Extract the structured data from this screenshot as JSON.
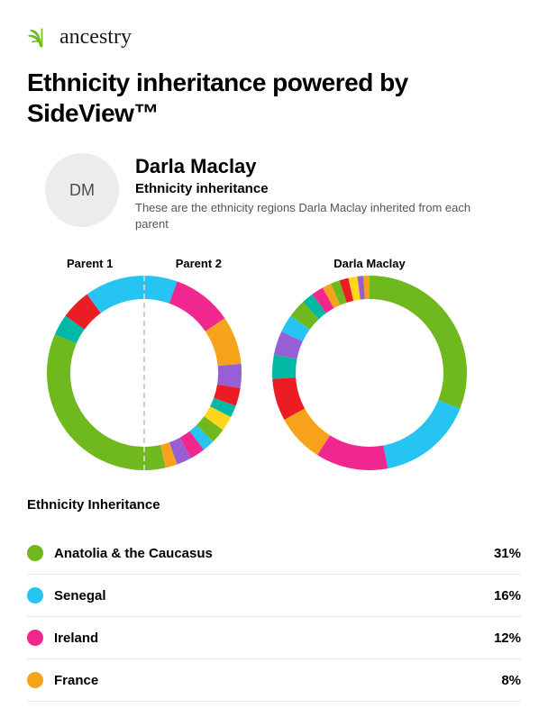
{
  "brand": {
    "name": "ancestry",
    "logo_color": "#6fb81e"
  },
  "title": "Ethnicity inheritance powered by SideView™",
  "person": {
    "initials": "DM",
    "name": "Darla Maclay",
    "subtitle": "Ethnicity inheritance",
    "description": "These are the ethnicity regions Darla Maclay inherited from each parent"
  },
  "chart_config": {
    "size": 216,
    "radius": 95,
    "stroke": 26,
    "bg_color": "#ffffff"
  },
  "parents_labels": {
    "left": "Parent 1",
    "right": "Parent 2"
  },
  "child_label": "Darla Maclay",
  "child_donut": {
    "slices": [
      {
        "color": "#6fb81e",
        "pct": 31
      },
      {
        "color": "#25c4f2",
        "pct": 16
      },
      {
        "color": "#ef278f",
        "pct": 12
      },
      {
        "color": "#f6a21a",
        "pct": 8
      },
      {
        "color": "#ec1c24",
        "pct": 7
      },
      {
        "color": "#00b8a4",
        "pct": 4
      },
      {
        "color": "#9660d4",
        "pct": 4
      },
      {
        "color": "#25c4f2",
        "pct": 3
      },
      {
        "color": "#6fb81e",
        "pct": 3
      },
      {
        "color": "#00b8a4",
        "pct": 2
      },
      {
        "color": "#ef278f",
        "pct": 2
      },
      {
        "color": "#f6a21a",
        "pct": 1.5
      },
      {
        "color": "#6fb81e",
        "pct": 1.5
      },
      {
        "color": "#ec1c24",
        "pct": 1.5
      },
      {
        "color": "#ffd51e",
        "pct": 1.5
      },
      {
        "color": "#9660d4",
        "pct": 1
      },
      {
        "color": "#f6a21a",
        "pct": 1
      }
    ]
  },
  "parent1_donut": {
    "slices": [
      {
        "color": "#6fb81e",
        "pct": 63
      },
      {
        "color": "#00b8a4",
        "pct": 7
      },
      {
        "color": "#ec1c24",
        "pct": 10
      },
      {
        "color": "#25c4f2",
        "pct": 20
      }
    ]
  },
  "parent2_donut": {
    "slices": [
      {
        "color": "#25c4f2",
        "pct": 11
      },
      {
        "color": "#ef278f",
        "pct": 20
      },
      {
        "color": "#f6a21a",
        "pct": 16
      },
      {
        "color": "#9660d4",
        "pct": 8
      },
      {
        "color": "#ec1c24",
        "pct": 6
      },
      {
        "color": "#00b8a4",
        "pct": 4
      },
      {
        "color": "#ffd51e",
        "pct": 5
      },
      {
        "color": "#6fb81e",
        "pct": 5
      },
      {
        "color": "#25c4f2",
        "pct": 4
      },
      {
        "color": "#ef278f",
        "pct": 5
      },
      {
        "color": "#9660d4",
        "pct": 5
      },
      {
        "color": "#f6a21a",
        "pct": 4
      },
      {
        "color": "#6fb81e",
        "pct": 7
      }
    ]
  },
  "section_title": "Ethnicity Inheritance",
  "regions": [
    {
      "label": "Anatolia & the Caucasus",
      "pct": "31%",
      "color": "#6fb81e"
    },
    {
      "label": "Senegal",
      "pct": "16%",
      "color": "#25c4f2"
    },
    {
      "label": "Ireland",
      "pct": "12%",
      "color": "#ef278f"
    },
    {
      "label": "France",
      "pct": "8%",
      "color": "#f6a21a"
    }
  ]
}
